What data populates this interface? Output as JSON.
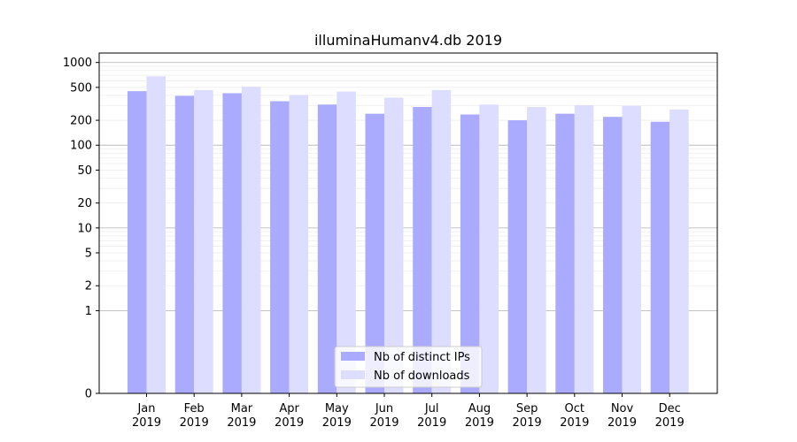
{
  "chart_data": {
    "type": "bar",
    "title": "illuminaHumanv4.db 2019",
    "xlabel": "",
    "ylabel": "",
    "yscale": "symlog",
    "ylim": [
      0,
      1300
    ],
    "yticks": [
      0,
      1,
      2,
      5,
      10,
      20,
      50,
      100,
      200,
      500,
      1000
    ],
    "ytick_labels": [
      "0",
      "1",
      "2",
      "5",
      "10",
      "20",
      "50",
      "100",
      "200",
      "500",
      "1000"
    ],
    "grid": true,
    "legend_position": "bottom-center",
    "categories": [
      "Jan\n2019",
      "Feb\n2019",
      "Mar\n2019",
      "Apr\n2019",
      "May\n2019",
      "Jun\n2019",
      "Jul\n2019",
      "Aug\n2019",
      "Sep\n2019",
      "Oct\n2019",
      "Nov\n2019",
      "Dec\n2019"
    ],
    "series": [
      {
        "name": "Nb of distinct IPs",
        "color": "#aaaaff",
        "values": [
          450,
          395,
          425,
          340,
          310,
          240,
          290,
          235,
          200,
          240,
          220,
          192
        ]
      },
      {
        "name": "Nb of downloads",
        "color": "#ddddff",
        "values": [
          680,
          465,
          510,
          405,
          445,
          375,
          465,
          310,
          290,
          305,
          300,
          270
        ]
      }
    ]
  }
}
